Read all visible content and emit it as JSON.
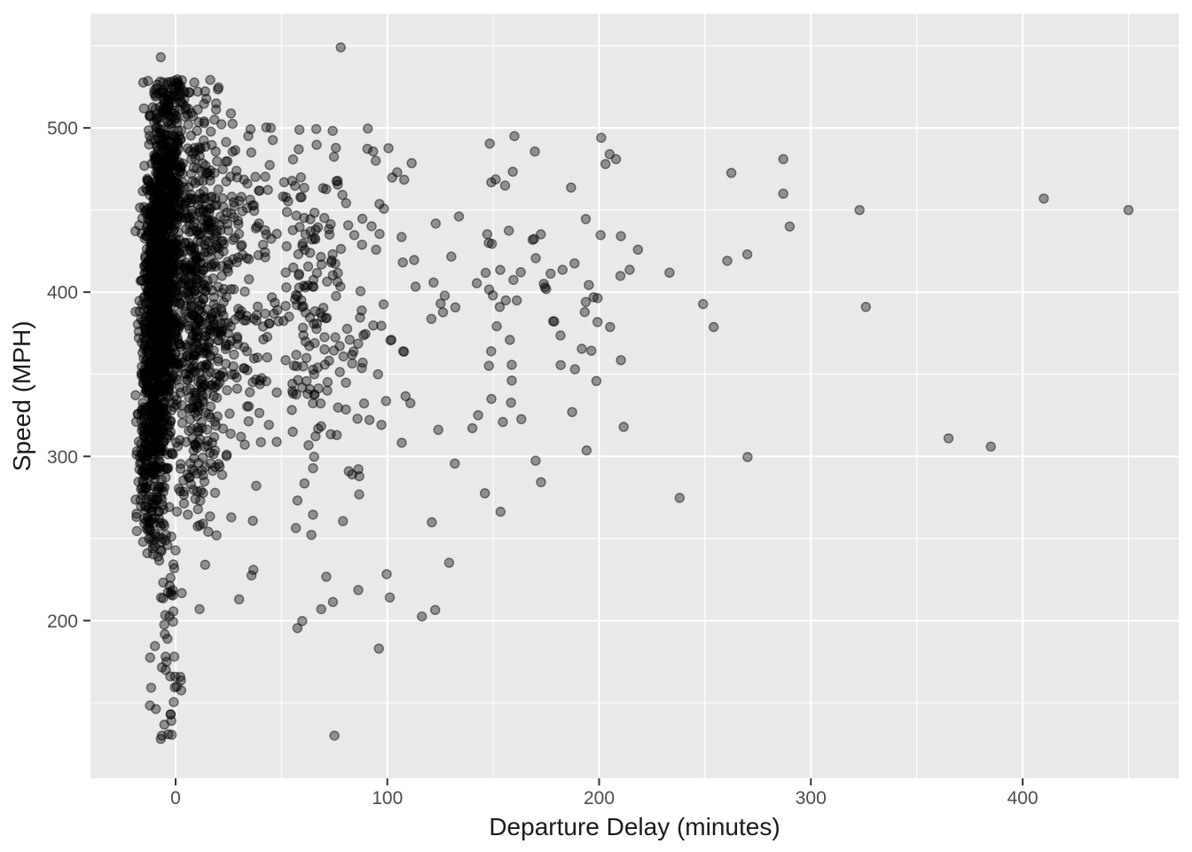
{
  "chart_data": {
    "type": "scatter",
    "title": "",
    "xlabel": "Departure Delay (minutes)",
    "ylabel": "Speed (MPH)",
    "x_ticks": [
      0,
      100,
      200,
      300,
      400
    ],
    "y_ticks": [
      200,
      300,
      400,
      500
    ],
    "x_minor_gridlines": [
      50,
      150,
      250,
      350,
      450
    ],
    "y_minor_gridlines": [
      150,
      250,
      350,
      450,
      550
    ],
    "xlim": [
      -40.2,
      473.7
    ],
    "ylim": [
      104,
      569.5
    ],
    "grid": "on",
    "legend_position": "none",
    "panel_bg": "#e9e9e9",
    "grid_color": "#ffffff",
    "tick_mark_color": "#333333",
    "tick_label_color": "#4d4d4d",
    "axis_title_color": "#1a1a1a",
    "point_style": {
      "color": "#000000",
      "fill_opacity": 0.38,
      "stroke_opacity": 0.5,
      "radius": 5,
      "stroke_width": 1.4
    },
    "notable_points": [
      [
        78,
        549
      ],
      [
        -7,
        543
      ],
      [
        1,
        528
      ],
      [
        -9,
        524
      ],
      [
        45,
        500
      ],
      [
        160,
        495
      ],
      [
        201,
        494
      ],
      [
        205,
        484
      ],
      [
        208,
        481
      ],
      [
        203,
        478
      ],
      [
        287,
        481
      ],
      [
        287,
        460
      ],
      [
        290,
        440
      ],
      [
        270,
        423
      ],
      [
        323,
        450
      ],
      [
        326,
        391
      ],
      [
        365,
        311
      ],
      [
        385,
        306
      ],
      [
        410,
        457
      ],
      [
        450,
        450
      ],
      [
        96,
        183
      ],
      [
        75,
        130
      ],
      [
        30,
        213
      ],
      [
        -2,
        139
      ],
      [
        -7,
        128
      ]
    ],
    "point_cloud_generator": {
      "seed": 1337,
      "clusters": [
        {
          "name": "band-core",
          "type": "band",
          "n": 1500,
          "y_mix": [
            {
              "mean": 430,
              "sd": 48,
              "w": 0.62
            },
            {
              "mean": 335,
              "sd": 52,
              "w": 0.38
            }
          ],
          "y_clip": [
            238,
            532
          ],
          "x_mean_at_500": -4,
          "x_tilt_per_unit": 0.0333,
          "x_sd": 4.2,
          "x_clip": [
            -19,
            14
          ]
        },
        {
          "name": "band-fringe",
          "type": "gauss2",
          "n": 420,
          "x_mean": 6,
          "x_sd": 9,
          "x_clip": [
            -16,
            40
          ],
          "y_mean": 400,
          "y_sd": 70,
          "y_clip": [
            245,
            525
          ]
        },
        {
          "name": "near-spread",
          "type": "expx",
          "n": 430,
          "x0": 6,
          "x_scale": 22,
          "x_max": 95,
          "y_mean": 405,
          "y_sd": 63,
          "y_clip": [
            252,
            508
          ]
        },
        {
          "name": "mid-spread",
          "type": "expx",
          "n": 170,
          "x0": 55,
          "x_scale": 30,
          "x_max": 160,
          "y_mean": 395,
          "y_sd": 65,
          "y_clip": [
            245,
            502
          ]
        },
        {
          "name": "far-spread",
          "type": "expx",
          "n": 72,
          "x0": 145,
          "x_scale": 45,
          "x_max": 272,
          "y_mean": 393,
          "y_sd": 60,
          "y_clip": [
            262,
            497
          ]
        },
        {
          "name": "low-tail",
          "type": "gauss-x-uni-y",
          "n": 48,
          "x_mean": -4,
          "x_sd": 3.8,
          "x_clip": [
            -13,
            9
          ],
          "y_min": 128,
          "y_max": 248
        },
        {
          "name": "low-mid",
          "type": "uni",
          "n": 22,
          "x_min": 10,
          "x_max": 135,
          "y_min": 195,
          "y_max": 265
        },
        {
          "name": "high-fringe",
          "type": "gauss-x-uni-y",
          "n": 55,
          "x_mean": -2,
          "x_sd": 10,
          "x_clip": [
            -14,
            60
          ],
          "y_min": 505,
          "y_max": 530
        }
      ]
    }
  }
}
